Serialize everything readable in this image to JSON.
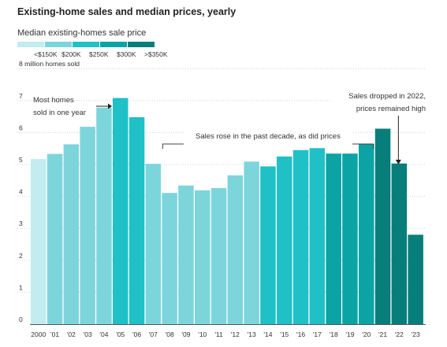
{
  "chart_data": {
    "type": "bar",
    "title": "Existing-home sales and median prices, yearly",
    "ylabel": "8 million homes sold",
    "ylim": [
      0,
      8
    ],
    "yticks": [
      0,
      1,
      2,
      3,
      4,
      5,
      6,
      7,
      8
    ],
    "grid": true,
    "legend": {
      "title": "Median existing-homes sale price",
      "placement": "top-left",
      "items": [
        {
          "label": "<$150K",
          "color": "#c2ecef"
        },
        {
          "label": "$200K",
          "color": "#7dd5dc"
        },
        {
          "label": "$250K",
          "color": "#1fc1c7"
        },
        {
          "label": "$300K",
          "color": "#0ba3a3"
        },
        {
          "label": ">$350K",
          "color": "#087e7b"
        }
      ]
    },
    "categories": [
      "2000",
      "'01",
      "'02",
      "'03",
      "'04",
      "'05",
      "'06",
      "'07",
      "'08",
      "'09",
      "'10",
      "'11",
      "'12",
      "'13",
      "'14",
      "'15",
      "'16",
      "'17",
      "'18",
      "'19",
      "'20",
      "'21",
      "'22",
      "'23"
    ],
    "values": [
      5.17,
      5.33,
      5.63,
      6.18,
      6.78,
      7.08,
      6.48,
      5.02,
      4.11,
      4.34,
      4.19,
      4.26,
      4.66,
      5.09,
      4.94,
      5.25,
      5.45,
      5.51,
      5.34,
      5.34,
      5.64,
      6.12,
      5.03,
      2.8
    ],
    "price_bracket": [
      0,
      1,
      1,
      1,
      1,
      2,
      2,
      1,
      1,
      1,
      1,
      1,
      1,
      1,
      2,
      2,
      2,
      2,
      3,
      3,
      3,
      4,
      4,
      4
    ],
    "annotations": [
      {
        "text": [
          "Most homes",
          "sold in one year"
        ]
      },
      {
        "text": [
          "Sales rose in the past decade, as did prices"
        ]
      },
      {
        "text": [
          "Sales dropped in 2022,",
          "prices remained high"
        ]
      }
    ]
  }
}
